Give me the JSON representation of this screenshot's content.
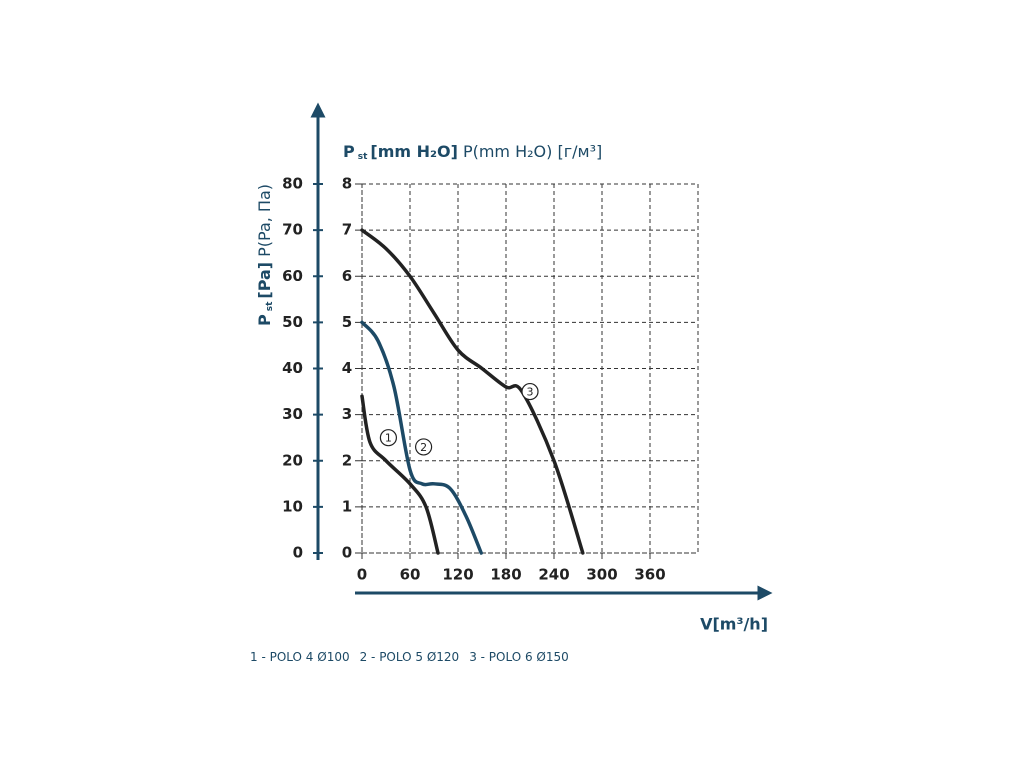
{
  "chart_data": {
    "type": "line",
    "y_label": {
      "symbol": "P",
      "sub": "st",
      "unit": "[Pa]",
      "alt": "P(Pa, Па)"
    },
    "y2_label": {
      "symbol": "P",
      "sub": "st",
      "unit": "[mm H₂O]",
      "alt": "P(mm H₂O) [г/м³]"
    },
    "x_label": "V[m³/h]",
    "xlim": [
      0,
      420
    ],
    "xticks": [
      0,
      60,
      120,
      180,
      240,
      300,
      360
    ],
    "ylim": [
      0,
      80
    ],
    "yticks": [
      0,
      10,
      20,
      30,
      40,
      50,
      60,
      70,
      80
    ],
    "y2lim": [
      0,
      8
    ],
    "y2ticks": [
      0,
      1,
      2,
      3,
      4,
      5,
      6,
      7,
      8
    ],
    "grid": true,
    "series": [
      {
        "name": "1 - POLO 4 Ø100",
        "color": "#222222",
        "x": [
          0,
          10,
          30,
          60,
          80,
          95
        ],
        "values": [
          34,
          24,
          20,
          15,
          10,
          0
        ]
      },
      {
        "name": "2 - POLO 5 Ø120",
        "color": "#1d4a66",
        "x": [
          0,
          20,
          40,
          60,
          75,
          90,
          110,
          130,
          149
        ],
        "values": [
          50,
          46,
          36,
          18,
          15,
          15,
          14,
          8,
          0
        ]
      },
      {
        "name": "3 - POLO 6 Ø150",
        "color": "#222222",
        "x": [
          0,
          30,
          60,
          90,
          120,
          150,
          180,
          200,
          240,
          276
        ],
        "values": [
          70,
          66,
          60,
          52,
          44,
          40,
          36,
          35,
          20,
          0
        ]
      }
    ],
    "annotations": [
      {
        "text": "1",
        "x": 33,
        "y": 25
      },
      {
        "text": "2",
        "x": 77,
        "y": 23
      },
      {
        "text": "3",
        "x": 210,
        "y": 35
      }
    ]
  }
}
